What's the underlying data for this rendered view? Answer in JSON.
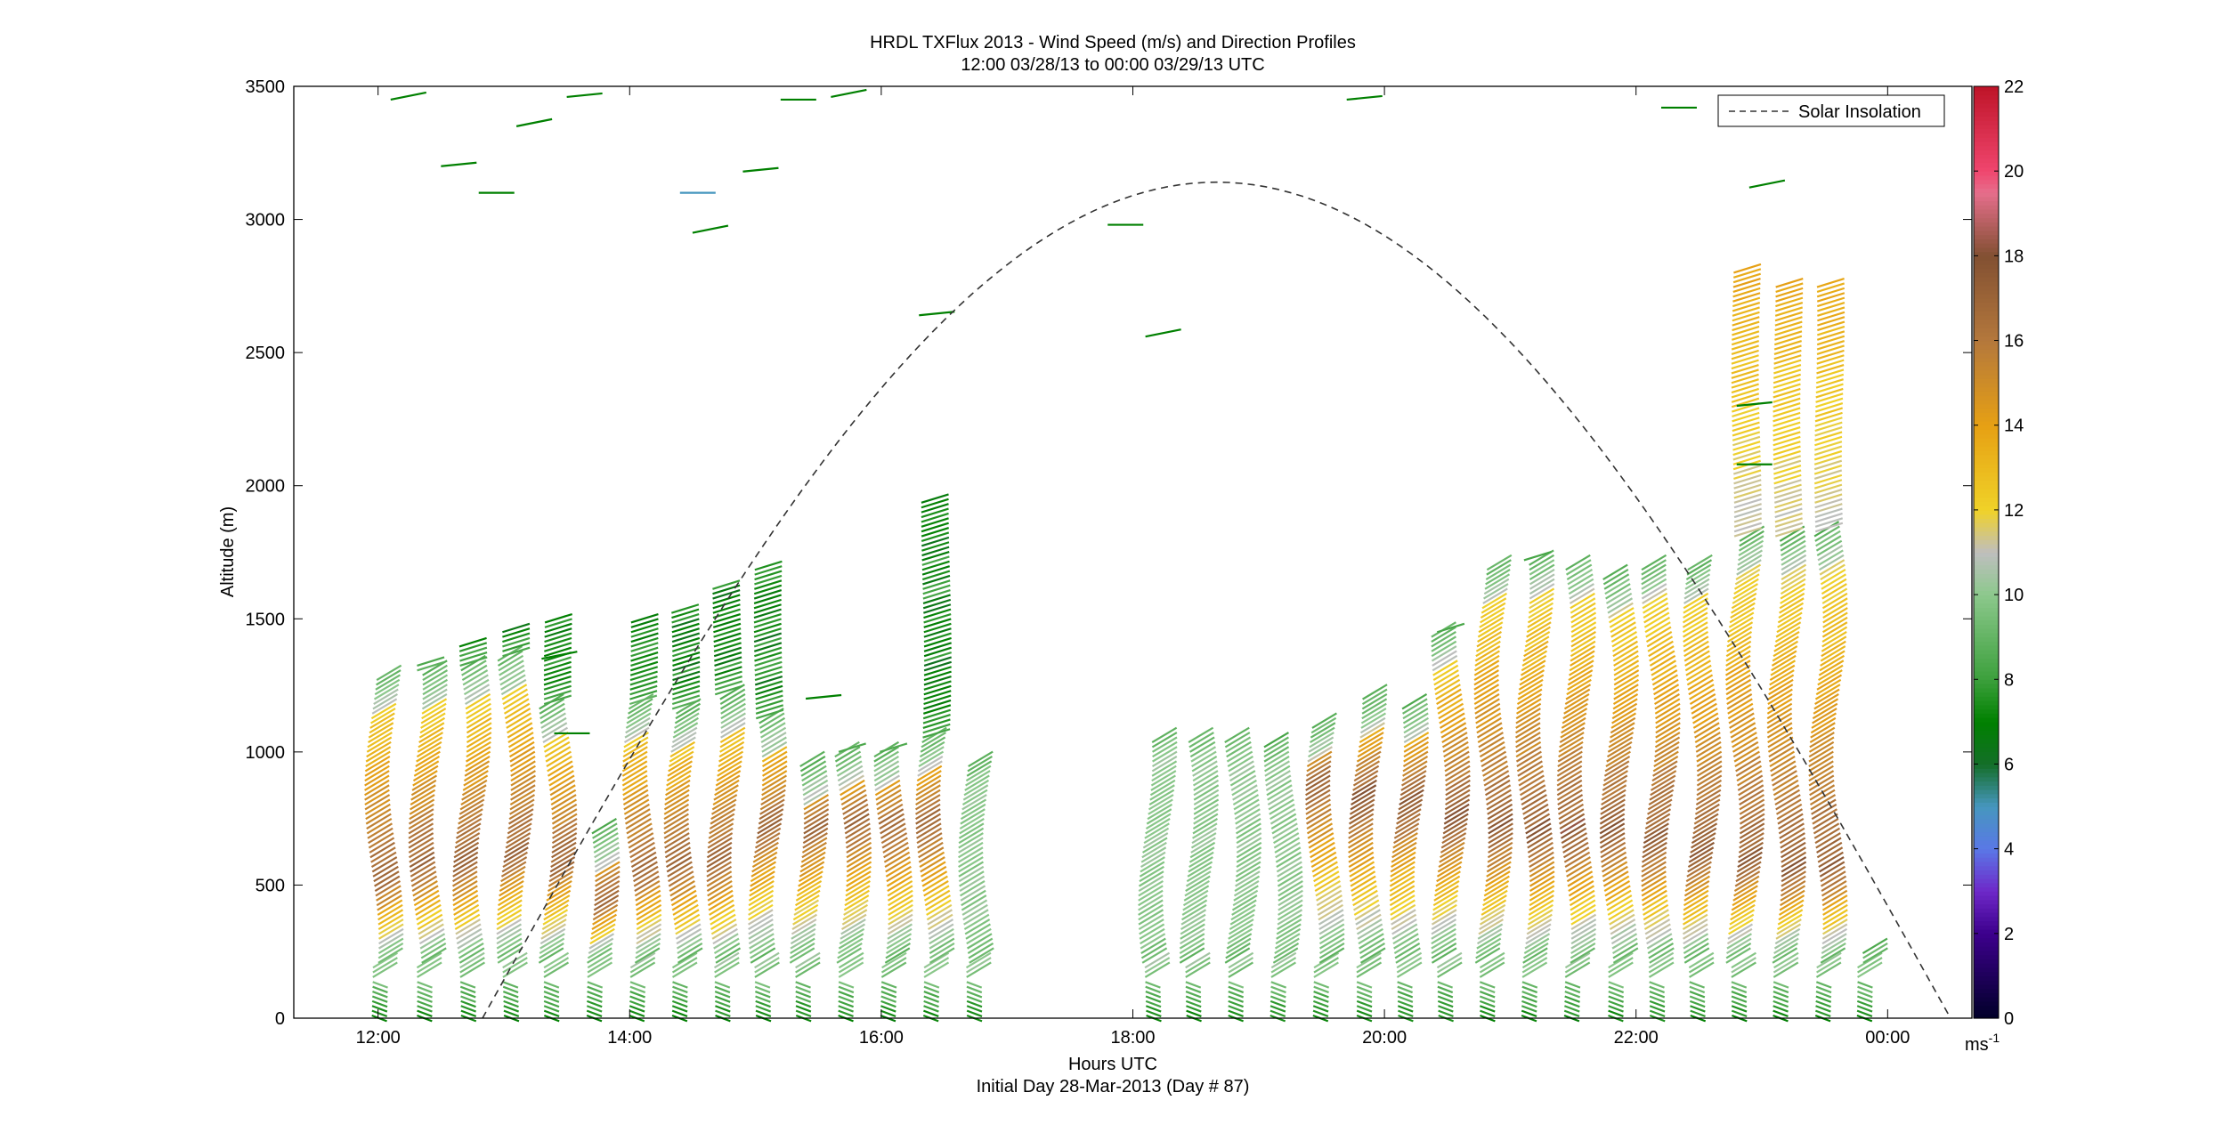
{
  "chart_data": {
    "type": "scatter",
    "title_line1": "HRDL TXFlux 2013 - Wind Speed (m/s) and Direction Profiles",
    "title_line2": "12:00 03/28/13 to 00:00 03/29/13  UTC",
    "xlabel": "Hours UTC",
    "xlabel_sub": "Initial Day 28-Mar-2013 (Day # 87)",
    "ylabel": "Altitude (m)",
    "x_ticks": [
      "12:00",
      "14:00",
      "16:00",
      "18:00",
      "20:00",
      "22:00",
      "00:00"
    ],
    "y_ticks": [
      "0",
      "500",
      "1000",
      "1500",
      "2000",
      "2500",
      "3000",
      "3500"
    ],
    "ylim": [
      0,
      3500
    ],
    "xlim_hours": [
      11.33,
      24.67
    ],
    "colorbar": {
      "ticks": [
        "0",
        "2",
        "4",
        "6",
        "8",
        "10",
        "12",
        "14",
        "16",
        "18",
        "20",
        "22"
      ],
      "unit": "ms",
      "unit_exp": "-1",
      "range": [
        0,
        22
      ]
    },
    "legend": {
      "entries": [
        "Solar Insolation"
      ],
      "placement": "top-right"
    },
    "solar_insolation": {
      "peak_altitude": 3140,
      "peak_hour": 18.6,
      "zero_hours": [
        12.83,
        24.5
      ]
    },
    "profiles": [
      {
        "hour": 11.95,
        "top": 1280,
        "bl": 1290,
        "jet": 500
      },
      {
        "hour": 12.3,
        "top": 1330,
        "bl": 1300,
        "jet": 550
      },
      {
        "hour": 12.65,
        "top": 1400,
        "bl": 1320,
        "jet": 560
      },
      {
        "hour": 13.0,
        "top": 1450,
        "bl": 1350,
        "jet": 600
      },
      {
        "hour": 13.33,
        "top": 1500,
        "bl": 1180,
        "jet": 560
      },
      {
        "hour": 13.67,
        "top": 700,
        "bl": 700,
        "jet": 420
      },
      {
        "hour": 14.0,
        "top": 1500,
        "bl": 1180,
        "jet": 520
      },
      {
        "hour": 14.33,
        "top": 1530,
        "bl": 1150,
        "jet": 540
      },
      {
        "hour": 14.67,
        "top": 1620,
        "bl": 1200,
        "jet": 560
      },
      {
        "hour": 15.0,
        "top": 1700,
        "bl": 1120,
        "jet": 700
      },
      {
        "hour": 15.33,
        "top": 950,
        "bl": 950,
        "jet": 700
      },
      {
        "hour": 15.67,
        "top": 1000,
        "bl": 1000,
        "jet": 720
      },
      {
        "hour": 16.0,
        "top": 1000,
        "bl": 1000,
        "jet": 700
      },
      {
        "hour": 16.33,
        "top": 1950,
        "bl": 1050,
        "jet": 700
      },
      {
        "hour": 16.67,
        "top": 950,
        "bl": 950,
        "jet": 900
      },
      {
        "hour": 18.1,
        "top": 1050,
        "bl": 1050,
        "jet": 900
      },
      {
        "hour": 18.43,
        "top": 1050,
        "bl": 1050,
        "jet": 880
      },
      {
        "hour": 18.77,
        "top": 1050,
        "bl": 1050,
        "jet": 900
      },
      {
        "hour": 19.1,
        "top": 1020,
        "bl": 1020,
        "jet": 880
      },
      {
        "hour": 19.43,
        "top": 1100,
        "bl": 1100,
        "jet": 860
      },
      {
        "hour": 19.77,
        "top": 1200,
        "bl": 1200,
        "jet": 840
      },
      {
        "hour": 20.1,
        "top": 1170,
        "bl": 1170,
        "jet": 820
      },
      {
        "hour": 20.43,
        "top": 1450,
        "bl": 1450,
        "jet": 760
      },
      {
        "hour": 20.77,
        "top": 1700,
        "bl": 1700,
        "jet": 720
      },
      {
        "hour": 21.1,
        "top": 1720,
        "bl": 1720,
        "jet": 700
      },
      {
        "hour": 21.43,
        "top": 1700,
        "bl": 1700,
        "jet": 700
      },
      {
        "hour": 21.77,
        "top": 1650,
        "bl": 1650,
        "jet": 700
      },
      {
        "hour": 22.1,
        "top": 1700,
        "bl": 1700,
        "jet": 660
      },
      {
        "hour": 22.43,
        "top": 1700,
        "bl": 1700,
        "jet": 620
      },
      {
        "hour": 22.77,
        "top": 2800,
        "bl": 1800,
        "jet": 600
      },
      {
        "hour": 23.1,
        "top": 2760,
        "bl": 1800,
        "jet": 560
      },
      {
        "hour": 23.43,
        "top": 2750,
        "bl": 1820,
        "jet": 560
      },
      {
        "hour": 23.75,
        "top": 250,
        "bl": 250,
        "jet": 100
      }
    ]
  }
}
